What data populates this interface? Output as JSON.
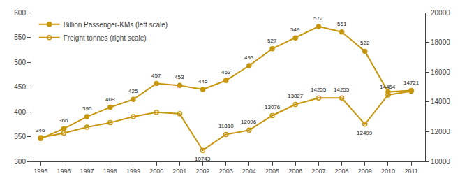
{
  "chart_data": {
    "type": "line",
    "x": [
      1995,
      1996,
      1997,
      1998,
      1999,
      2000,
      2001,
      2002,
      2003,
      2004,
      2005,
      2006,
      2007,
      2008,
      2009,
      2010,
      2011
    ],
    "series": [
      {
        "name": "Billion Passenger-KMs (left scale)",
        "color": "#C8960C",
        "marker": "circle",
        "axis": "y",
        "values": [
          346,
          366,
          390,
          409,
          425,
          457,
          453,
          445,
          463,
          493,
          527,
          549,
          572,
          561,
          522,
          440,
          443
        ]
      },
      {
        "name": "Freight tonnes (right scale)",
        "color": "#C8960C",
        "marker": "circle-open",
        "axis": "y2",
        "values": [
          11600,
          11900,
          12300,
          12600,
          13000,
          13300,
          13200,
          10743,
          11810,
          12096,
          13076,
          13827,
          14255,
          14255,
          12499,
          14464,
          14721
        ]
      }
    ],
    "xlim": [
      1994.6,
      2011.6
    ],
    "xticks": [
      1995,
      1996,
      1997,
      1998,
      1999,
      2000,
      2001,
      2002,
      2003,
      2004,
      2005,
      2006,
      2007,
      2008,
      2009,
      2010,
      2011
    ],
    "ylim": [
      300,
      600
    ],
    "yticks": [
      300,
      350,
      400,
      450,
      500,
      550,
      600
    ],
    "y2lim": [
      10000,
      20000
    ],
    "y2ticks": [
      10000,
      12000,
      14000,
      16000,
      18000,
      20000
    ],
    "grid": false,
    "legend": "upper left",
    "annotations": [
      {
        "x": 1995,
        "y": 346,
        "text": "346",
        "axis": "y",
        "position": "above"
      },
      {
        "x": 1996,
        "y": 366,
        "text": "366",
        "axis": "y",
        "position": "above"
      },
      {
        "x": 1997,
        "y": 390,
        "text": "390",
        "axis": "y",
        "position": "above"
      },
      {
        "x": 1998,
        "y": 409,
        "text": "409",
        "axis": "y",
        "position": "above"
      },
      {
        "x": 1999,
        "y": 425,
        "text": "425",
        "axis": "y",
        "position": "above"
      },
      {
        "x": 2000,
        "y": 457,
        "text": "457",
        "axis": "y",
        "position": "above"
      },
      {
        "x": 2001,
        "y": 453,
        "text": "453",
        "axis": "y",
        "position": "above"
      },
      {
        "x": 2002,
        "y": 445,
        "text": "445",
        "axis": "y",
        "position": "above"
      },
      {
        "x": 2003,
        "y": 463,
        "text": "463",
        "axis": "y",
        "position": "above"
      },
      {
        "x": 2004,
        "y": 493,
        "text": "493",
        "axis": "y",
        "position": "above"
      },
      {
        "x": 2005,
        "y": 527,
        "text": "527",
        "axis": "y",
        "position": "above"
      },
      {
        "x": 2006,
        "y": 549,
        "text": "549",
        "axis": "y",
        "position": "above"
      },
      {
        "x": 2007,
        "y": 572,
        "text": "572",
        "axis": "y",
        "position": "above"
      },
      {
        "x": 2008,
        "y": 561,
        "text": "561",
        "axis": "y",
        "position": "above"
      },
      {
        "x": 2009,
        "y": 522,
        "text": "522",
        "axis": "y",
        "position": "above"
      },
      {
        "x": 2002,
        "y": 10743,
        "text": "10743",
        "axis": "y2",
        "position": "below"
      },
      {
        "x": 2003,
        "y": 11810,
        "text": "11810",
        "axis": "y2",
        "position": "above"
      },
      {
        "x": 2004,
        "y": 12096,
        "text": "12096",
        "axis": "y2",
        "position": "above"
      },
      {
        "x": 2005,
        "y": 13076,
        "text": "13076",
        "axis": "y2",
        "position": "above"
      },
      {
        "x": 2006,
        "y": 13827,
        "text": "13827",
        "axis": "y2",
        "position": "above"
      },
      {
        "x": 2007,
        "y": 14255,
        "text": "14255",
        "axis": "y2",
        "position": "above"
      },
      {
        "x": 2008,
        "y": 14255,
        "text": "14255",
        "axis": "y2",
        "position": "above"
      },
      {
        "x": 2009,
        "y": 12499,
        "text": "12499",
        "axis": "y2",
        "position": "below"
      },
      {
        "x": 2010,
        "y": 14464,
        "text": "14464",
        "axis": "y2",
        "position": "above"
      },
      {
        "x": 2011,
        "y": 14721,
        "text": "14721",
        "axis": "y2",
        "position": "above"
      }
    ]
  }
}
